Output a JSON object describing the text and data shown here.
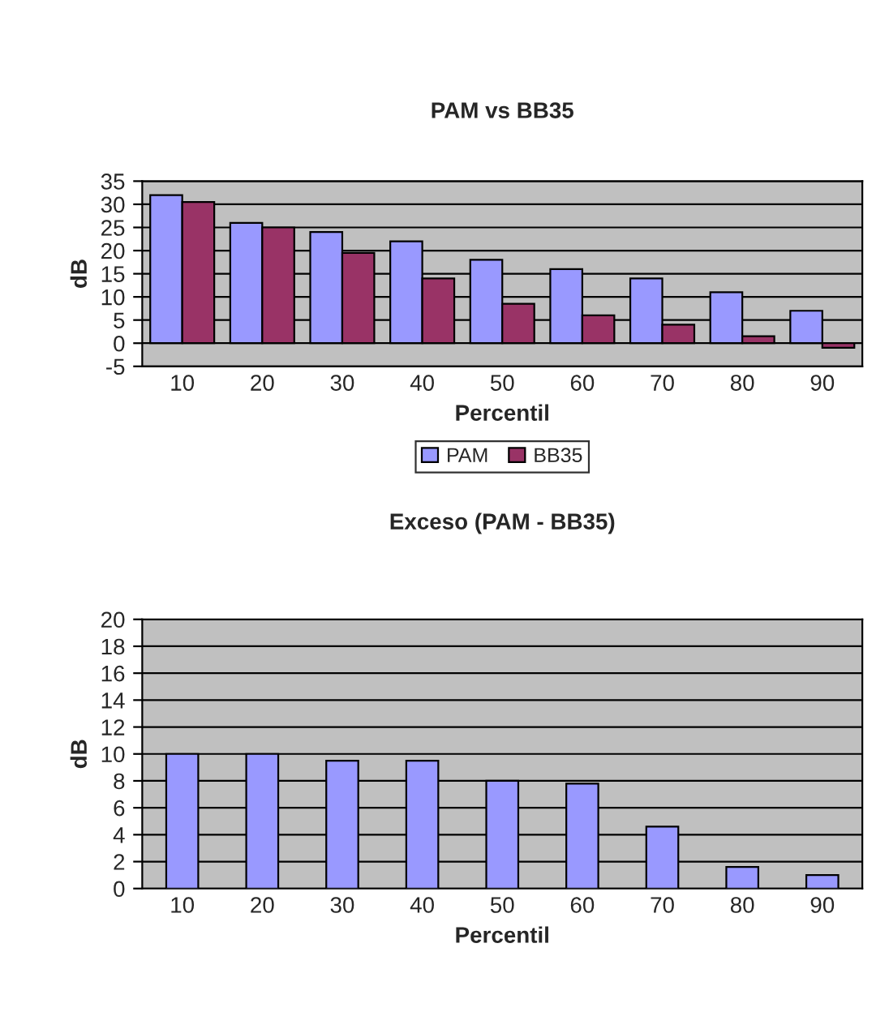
{
  "chart_data": [
    {
      "type": "bar",
      "title": "PAM vs BB35",
      "xlabel": "Percentil",
      "ylabel": "dB",
      "categories": [
        "10",
        "20",
        "30",
        "40",
        "50",
        "60",
        "70",
        "80",
        "90"
      ],
      "series": [
        {
          "name": "PAM",
          "color": "#9999ff",
          "values": [
            32,
            26,
            24,
            22,
            18,
            16,
            14,
            11,
            7
          ]
        },
        {
          "name": "BB35",
          "color": "#993366",
          "values": [
            30.5,
            25,
            19.5,
            14,
            8.5,
            6,
            4,
            1.5,
            -1
          ]
        }
      ],
      "ylim": [
        -5,
        35
      ],
      "yticks": [
        -5,
        0,
        5,
        10,
        15,
        20,
        25,
        30,
        35
      ],
      "grid": "y",
      "legend": "bottom"
    },
    {
      "type": "bar",
      "title": "Exceso (PAM - BB35)",
      "xlabel": "Percentil",
      "ylabel": "dB",
      "categories": [
        "10",
        "20",
        "30",
        "40",
        "50",
        "60",
        "70",
        "80",
        "90"
      ],
      "series": [
        {
          "color": "#9999ff",
          "values": [
            10,
            10,
            9.5,
            9.5,
            8,
            7.8,
            4.6,
            1.6,
            1.0
          ]
        }
      ],
      "ylim": [
        0,
        20
      ],
      "yticks": [
        0,
        2,
        4,
        6,
        8,
        10,
        12,
        14,
        16,
        18,
        20
      ],
      "grid": "y"
    }
  ]
}
